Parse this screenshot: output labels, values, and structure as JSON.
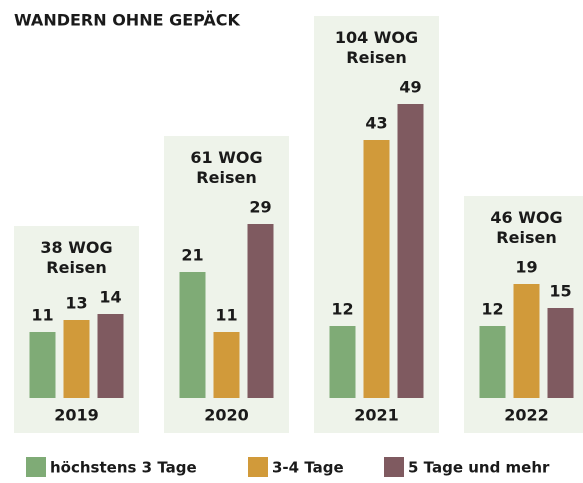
{
  "chart_data": {
    "type": "bar",
    "title": "WANDERN OHNE GEPÄCK",
    "categories": [
      "2019",
      "2020",
      "2021",
      "2022"
    ],
    "series": [
      {
        "name": "höchstens 3 Tage",
        "color": "#7fab76",
        "values": [
          11,
          21,
          12,
          12
        ]
      },
      {
        "name": "3-4 Tage",
        "color": "#d19a3a",
        "values": [
          13,
          11,
          43,
          19
        ]
      },
      {
        "name": "5 Tage und mehr",
        "color": "#7f5a60",
        "values": [
          14,
          29,
          49,
          15
        ]
      }
    ],
    "totals": {
      "values": [
        38,
        61,
        104,
        46
      ],
      "value_labels": [
        "38 WOG Reisen",
        "61 WOG Reisen",
        "104 WOG Reisen",
        "46 WOG Reisen"
      ]
    },
    "ylim": [
      0,
      50
    ]
  }
}
